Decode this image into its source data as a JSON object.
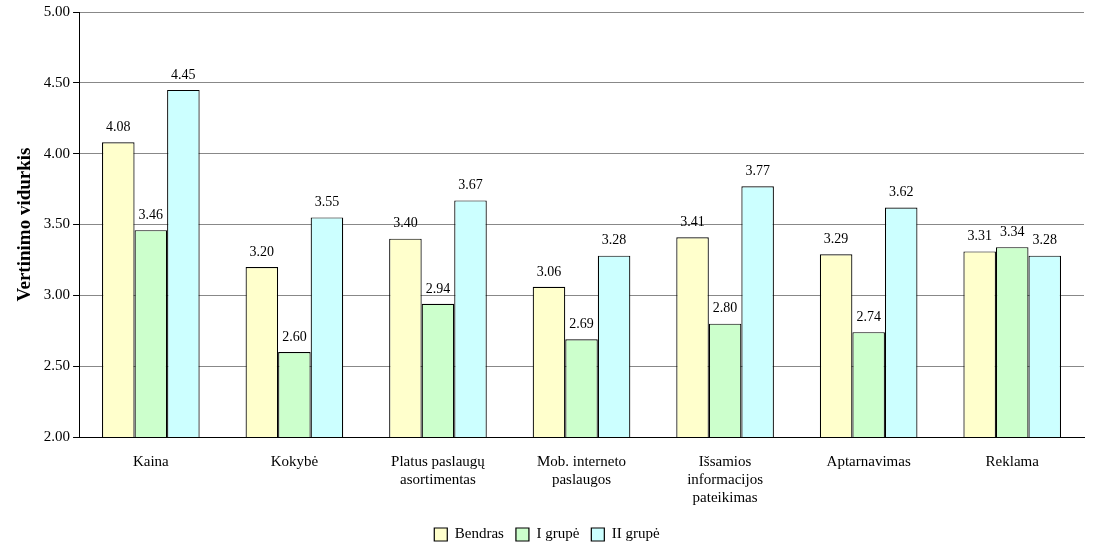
{
  "chart_data": {
    "type": "bar",
    "ylabel": "Vertinimo vidurkis",
    "categories": [
      "Kaina",
      "Kokybė",
      "Platus paslaugų asortimentas",
      "Mob. interneto paslaugos",
      "Išsamios informacijos pateikimas",
      "Aptarnavimas",
      "Reklama"
    ],
    "series": [
      {
        "name": "Bendras",
        "color": "#ffffcc",
        "values": [
          4.08,
          3.2,
          3.4,
          3.06,
          3.41,
          3.29,
          3.31
        ],
        "value_labels": [
          "4.08",
          "3.20",
          "3.40",
          "3.06",
          "3.41",
          "3.29",
          "3.31"
        ]
      },
      {
        "name": "I grupė",
        "color": "#ccffcc",
        "values": [
          3.46,
          2.6,
          2.94,
          2.69,
          2.8,
          2.74,
          3.34
        ],
        "value_labels": [
          "3.46",
          "2.60",
          "2.94",
          "2.69",
          "2.80",
          "2.74",
          "3.34"
        ]
      },
      {
        "name": "II grupė",
        "color": "#ccffff",
        "values": [
          4.45,
          3.55,
          3.67,
          3.28,
          3.77,
          3.62,
          3.28
        ],
        "value_labels": [
          "4.45",
          "3.55",
          "3.67",
          "3.28",
          "3.77",
          "3.62",
          "3.28"
        ]
      }
    ],
    "ylim": [
      2,
      5
    ],
    "yticks": [
      {
        "value": 2,
        "label": "2.00"
      },
      {
        "value": 2.5,
        "label": "2.50"
      },
      {
        "value": 3,
        "label": "3.00"
      },
      {
        "value": 3.5,
        "label": "3.50"
      },
      {
        "value": 4,
        "label": "4.00"
      },
      {
        "value": 4.5,
        "label": "4.50"
      },
      {
        "value": 5,
        "label": "5.00"
      }
    ],
    "grid": "y",
    "legend": "bottom"
  }
}
